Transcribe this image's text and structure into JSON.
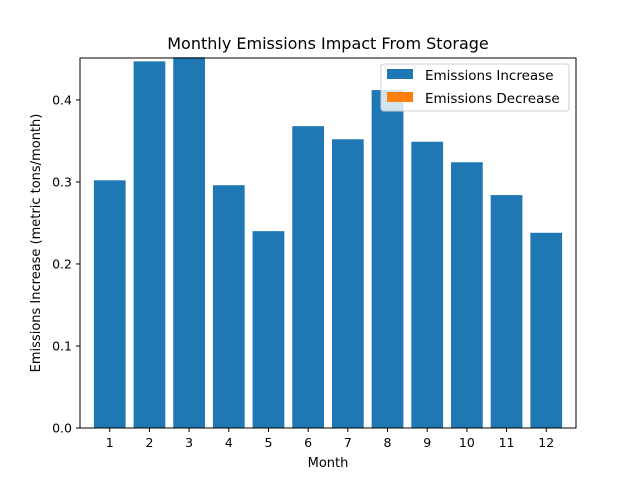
{
  "chart_data": {
    "type": "bar",
    "title": "Monthly Emissions Impact From Storage",
    "xlabel": "Month",
    "ylabel": "Emissions Increase (metric tons/month)",
    "categories": [
      "1",
      "2",
      "3",
      "4",
      "5",
      "6",
      "7",
      "8",
      "9",
      "10",
      "11",
      "12"
    ],
    "series": [
      {
        "name": "Emissions Increase",
        "color": "#1f77b4",
        "values": [
          0.302,
          0.447,
          0.452,
          0.296,
          0.24,
          0.368,
          0.352,
          0.412,
          0.349,
          0.324,
          0.284,
          0.238
        ]
      },
      {
        "name": "Emissions Decrease",
        "color": "#ff7f0e",
        "values": [
          0,
          0,
          0,
          0,
          0,
          0,
          0,
          0,
          0,
          0,
          0,
          0
        ]
      }
    ],
    "ylim": [
      0,
      0.4511
    ],
    "yticks": [
      0.0,
      0.1,
      0.2,
      0.3,
      0.4
    ],
    "ytick_labels": [
      "0.0",
      "0.1",
      "0.2",
      "0.3",
      "0.4"
    ],
    "grid": false,
    "legend_position": "top-right"
  }
}
